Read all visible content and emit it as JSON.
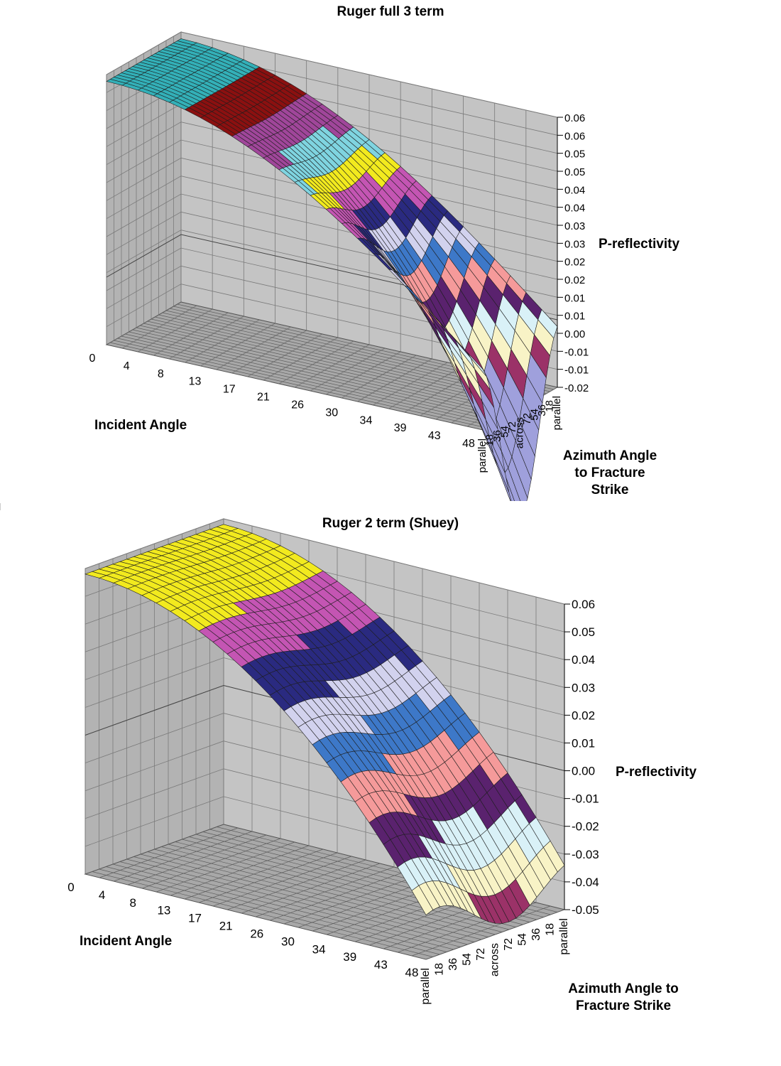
{
  "chart_data": [
    {
      "type": "surface",
      "title": "Ruger full 3 term",
      "xlabel": "Incident Angle",
      "ylabel": "Azimuth Angle to Fracture Strike",
      "zlabel": "P-reflectivity",
      "x_ticks": [
        "0",
        "4",
        "8",
        "13",
        "17",
        "21",
        "26",
        "30",
        "34",
        "39",
        "43",
        "48"
      ],
      "y_ticks": [
        "parallel",
        "18",
        "36",
        "54",
        "72",
        "across",
        "72",
        "54",
        "36",
        "18",
        "parallel"
      ],
      "z_ticks": [
        "0.06",
        "0.06",
        "0.05",
        "0.05",
        "0.04",
        "0.04",
        "0.03",
        "0.03",
        "0.02",
        "0.02",
        "0.01",
        "0.01",
        "0.00",
        "-0.01",
        "-0.01",
        "-0.02"
      ],
      "zlim": [
        -0.02,
        0.06
      ],
      "band_colors": [
        "#33b0b8",
        "#8b1010",
        "#a0469a",
        "#7fd4e0",
        "#f2ea1e",
        "#c455b3",
        "#2a2a80",
        "#d2d2ee",
        "#3d78c8",
        "#f59a9a",
        "#5a226e",
        "#d9f1f7",
        "#f8f3c6",
        "#9b3268",
        "#9fa0dc"
      ],
      "summary": "Reflectivity ≈0.058 at normal incidence, decreasing with incident angle; strong azimuthal variation at large angles (about -0.02 across fractures vs about 0.01 parallel at 48°)."
    },
    {
      "type": "surface",
      "title": "Ruger 2 term (Shuey)",
      "xlabel": "Incident Angle",
      "ylabel": "Azimuth Angle to Fracture Strike",
      "zlabel": "P-reflectivity",
      "x_ticks": [
        "0",
        "4",
        "8",
        "13",
        "17",
        "21",
        "26",
        "30",
        "34",
        "39",
        "43",
        "48"
      ],
      "y_ticks": [
        "parallel",
        "18",
        "36",
        "54",
        "72",
        "across",
        "72",
        "54",
        "36",
        "18",
        "parallel"
      ],
      "z_ticks": [
        "0.06",
        "0.05",
        "0.04",
        "0.03",
        "0.02",
        "0.01",
        "0.00",
        "-0.01",
        "-0.02",
        "-0.03",
        "-0.04",
        "-0.05"
      ],
      "zlim": [
        -0.05,
        0.06
      ],
      "band_colors": [
        "#f2ea1e",
        "#c455b3",
        "#2a2a80",
        "#d2d2ee",
        "#3d78c8",
        "#f59a9a",
        "#5a226e",
        "#d9f1f7",
        "#f8f3c6",
        "#9b3268"
      ],
      "summary": "Reflectivity ≈0.058 at normal incidence, decreasing to about -0.04 at 48° with weaker azimuthal variation."
    }
  ]
}
